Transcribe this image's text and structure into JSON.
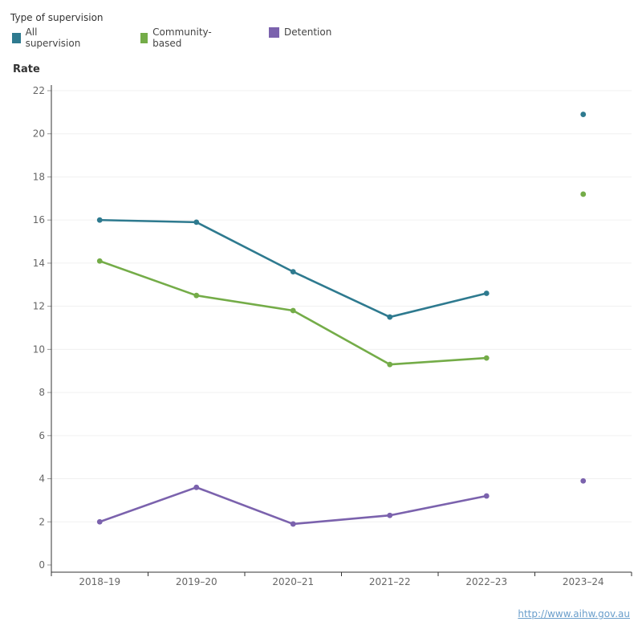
{
  "legend": {
    "title": "Type of supervision",
    "items": [
      {
        "label": "All supervision",
        "color": "#2e7a8f"
      },
      {
        "label": "Community-based",
        "color": "#74ac48"
      },
      {
        "label": "Detention",
        "color": "#7b62ad"
      }
    ]
  },
  "source_link": "http://www.aihw.gov.au",
  "chart_data": {
    "type": "line",
    "ylabel": "Rate",
    "xlabel": "",
    "ylim": [
      0,
      22
    ],
    "yticks": [
      0,
      2,
      4,
      6,
      8,
      10,
      12,
      14,
      16,
      18,
      20,
      22
    ],
    "categories": [
      "2018–19",
      "2019–20",
      "2020–21",
      "2021–22",
      "2022–23",
      "2023–24"
    ],
    "grid": true,
    "legend_position": "top-left",
    "series": [
      {
        "name": "All supervision",
        "color": "#2e7a8f",
        "values": [
          16.0,
          15.9,
          13.6,
          11.5,
          12.6,
          20.9
        ],
        "break_before_last": true
      },
      {
        "name": "Community-based",
        "color": "#74ac48",
        "values": [
          14.1,
          12.5,
          11.8,
          9.3,
          9.6,
          17.2
        ],
        "break_before_last": true
      },
      {
        "name": "Detention",
        "color": "#7b62ad",
        "values": [
          2.0,
          3.6,
          1.9,
          2.3,
          3.2,
          3.9
        ],
        "break_before_last": true
      }
    ]
  }
}
